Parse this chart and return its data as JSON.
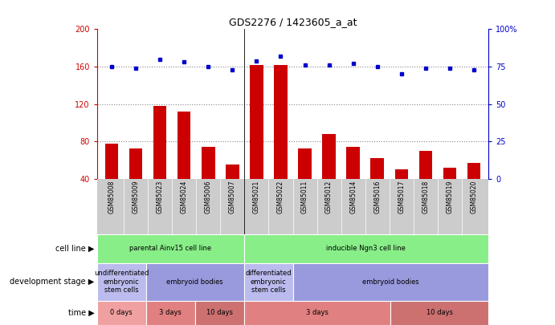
{
  "title": "GDS2276 / 1423605_a_at",
  "samples": [
    "GSM85008",
    "GSM85009",
    "GSM85023",
    "GSM85024",
    "GSM85006",
    "GSM85007",
    "GSM85021",
    "GSM85022",
    "GSM85011",
    "GSM85012",
    "GSM85014",
    "GSM85016",
    "GSM85017",
    "GSM85018",
    "GSM85019",
    "GSM85020"
  ],
  "counts": [
    78,
    72,
    118,
    112,
    74,
    55,
    162,
    162,
    72,
    88,
    74,
    62,
    50,
    70,
    52,
    57
  ],
  "percentiles": [
    75,
    74,
    80,
    78,
    75,
    73,
    79,
    82,
    76,
    76,
    77,
    75,
    70,
    74,
    74,
    73
  ],
  "ylim_left": [
    40,
    200
  ],
  "ylim_right": [
    0,
    100
  ],
  "yticks_left": [
    40,
    80,
    120,
    160,
    200
  ],
  "yticks_right": [
    0,
    25,
    50,
    75,
    100
  ],
  "bar_color": "#cc0000",
  "dot_color": "#0000cc",
  "dotted_line_color": "#888888",
  "cell_line_groups": [
    {
      "text": "parental Ainv15 cell line",
      "start": 0,
      "end": 6,
      "color": "#88ee88"
    },
    {
      "text": "inducible Ngn3 cell line",
      "start": 6,
      "end": 16,
      "color": "#88ee88"
    }
  ],
  "dev_stage_groups": [
    {
      "text": "undifferentiated\nembryonic\nstem cells",
      "start": 0,
      "end": 2,
      "color": "#bbbbee"
    },
    {
      "text": "embryoid bodies",
      "start": 2,
      "end": 6,
      "color": "#9999dd"
    },
    {
      "text": "differentiated\nembryonic\nstem cells",
      "start": 6,
      "end": 8,
      "color": "#bbbbee"
    },
    {
      "text": "embryoid bodies",
      "start": 8,
      "end": 16,
      "color": "#9999dd"
    }
  ],
  "time_groups": [
    {
      "text": "0 days",
      "start": 0,
      "end": 2,
      "color": "#f0a0a0"
    },
    {
      "text": "3 days",
      "start": 2,
      "end": 4,
      "color": "#e08080"
    },
    {
      "text": "10 days",
      "start": 4,
      "end": 6,
      "color": "#cc7070"
    },
    {
      "text": "3 days",
      "start": 6,
      "end": 12,
      "color": "#e08080"
    },
    {
      "text": "10 days",
      "start": 12,
      "end": 16,
      "color": "#cc7070"
    }
  ],
  "tick_color_left": "#cc0000",
  "tick_color_right": "#0000cc",
  "sample_bg": "#cccccc",
  "chart_bg": "#ffffff"
}
